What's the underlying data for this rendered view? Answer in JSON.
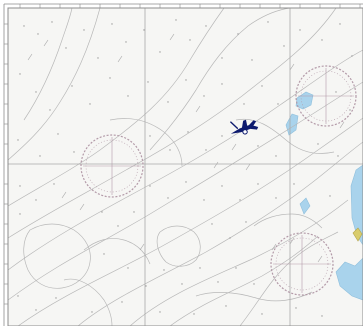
{
  "map": {
    "kind": "nautical-chart-excerpt",
    "colors": {
      "paper": "#f6f6f4",
      "frame": "#8c8c8c",
      "grid": "#a9a9a9",
      "depth_contour": "#b8b8b8",
      "soundings": "#9a9a9a",
      "compass_rose": "#b39aa8",
      "shallow_water": "#a9d3ec",
      "land_tint": "#d9cc6c",
      "vessel": "#0d1a6e"
    },
    "compass_roses": [
      "rose-northeast",
      "rose-west",
      "rose-southeast"
    ],
    "vessel_icon": "aircraft-icon"
  }
}
